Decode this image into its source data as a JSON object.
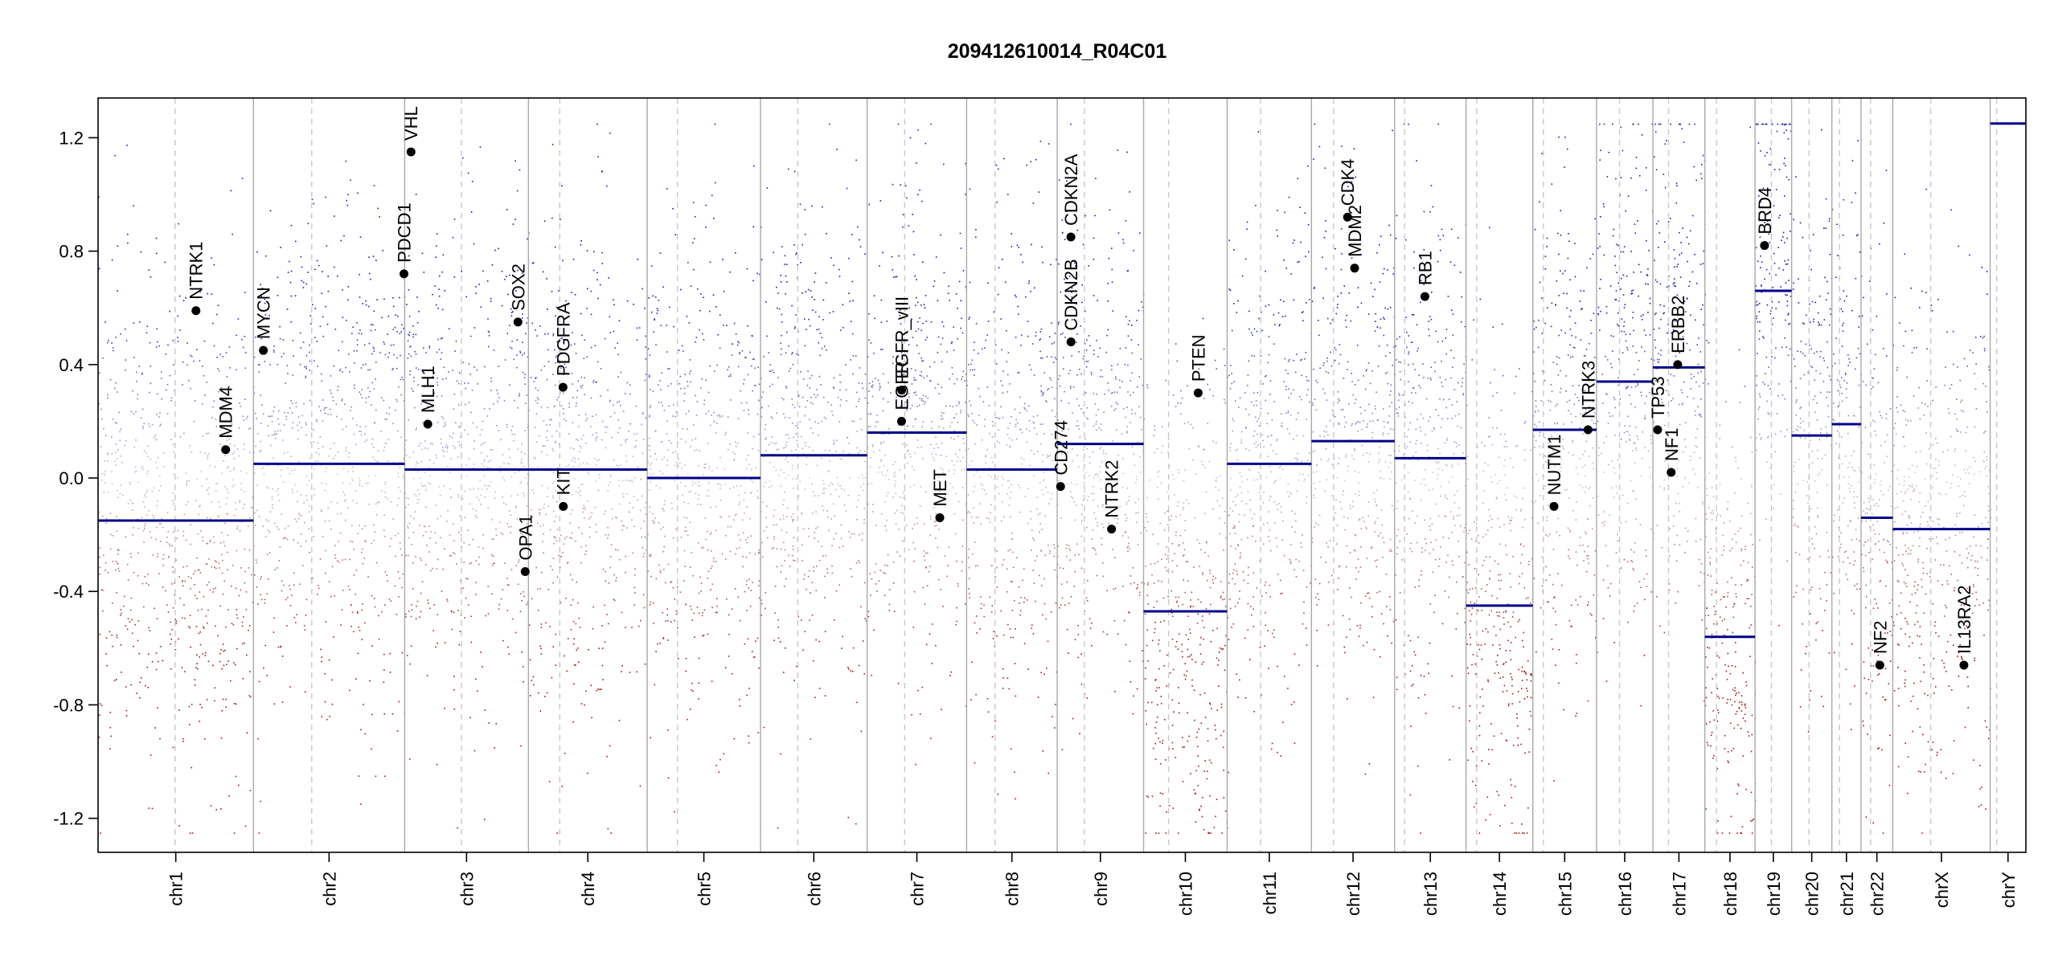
{
  "chart_data": {
    "type": "scatter",
    "title": "209412610014_R04C01",
    "xlabel": "",
    "ylabel": "",
    "ylim": [
      -1.32,
      1.34
    ],
    "yticks": [
      -1.2,
      -0.8,
      -0.4,
      0.0,
      0.4,
      0.8,
      1.2
    ],
    "ytick_labels": [
      "-1.2",
      "-0.8",
      "-0.4",
      "0.0",
      "0.4",
      "0.8",
      "1.2"
    ],
    "clip_value": 1.25,
    "grid": false,
    "colors": {
      "positive": "#1a1aa8",
      "negative": "#a01818",
      "neutral": "#b9b9c8",
      "segment": "#00008b",
      "boundary": "#a9a9a9",
      "centromere": "#c8c8c8"
    },
    "chromosomes": [
      {
        "name": "chr1",
        "start": 0.0,
        "end": 248.96,
        "centromere": 123.4
      },
      {
        "name": "chr2",
        "start": 248.96,
        "end": 491.15,
        "centromere": 342.3
      },
      {
        "name": "chr3",
        "start": 491.15,
        "end": 689.45,
        "centromere": 582.0
      },
      {
        "name": "chr4",
        "start": 689.45,
        "end": 879.67,
        "centromere": 739.6
      },
      {
        "name": "chr5",
        "start": 879.67,
        "end": 1061.21,
        "centromere": 928.1
      },
      {
        "name": "chr6",
        "start": 1061.21,
        "end": 1232.01,
        "centromere": 1121.0
      },
      {
        "name": "chr7",
        "start": 1232.01,
        "end": 1391.36,
        "centromere": 1292.2
      },
      {
        "name": "chr8",
        "start": 1391.36,
        "end": 1536.49,
        "centromere": 1436.9
      },
      {
        "name": "chr9",
        "start": 1536.49,
        "end": 1674.88,
        "centromere": 1580.0
      },
      {
        "name": "chr10",
        "start": 1674.88,
        "end": 1808.68,
        "centromere": 1714.9
      },
      {
        "name": "chr11",
        "start": 1808.68,
        "end": 1943.77,
        "centromere": 1862.3
      },
      {
        "name": "chr12",
        "start": 1943.77,
        "end": 2077.05,
        "centromere": 1979.3
      },
      {
        "name": "chr13",
        "start": 2077.05,
        "end": 2191.41,
        "centromere": 2093.0
      },
      {
        "name": "chr14",
        "start": 2191.41,
        "end": 2298.45,
        "centromere": 2208.5
      },
      {
        "name": "chr15",
        "start": 2298.45,
        "end": 2400.44,
        "centromere": 2315.3
      },
      {
        "name": "chr16",
        "start": 2400.44,
        "end": 2490.78,
        "centromere": 2437.3
      },
      {
        "name": "chr17",
        "start": 2490.78,
        "end": 2574.04,
        "centromere": 2515.8
      },
      {
        "name": "chr18",
        "start": 2574.04,
        "end": 2654.41,
        "centromere": 2592.6
      },
      {
        "name": "chr19",
        "start": 2654.41,
        "end": 2713.02,
        "centromere": 2680.6
      },
      {
        "name": "chr20",
        "start": 2713.02,
        "end": 2777.46,
        "centromere": 2741.0
      },
      {
        "name": "chr21",
        "start": 2777.46,
        "end": 2824.17,
        "centromere": 2789.5
      },
      {
        "name": "chr22",
        "start": 2824.17,
        "end": 2874.99,
        "centromere": 2839.4
      },
      {
        "name": "chrX",
        "start": 2874.99,
        "end": 3031.03,
        "centromere": 2935.8
      },
      {
        "name": "chrY",
        "start": 3031.03,
        "end": 3088.26,
        "centromere": 3041.4
      }
    ],
    "segments": [
      {
        "chr": "chr1",
        "value": -0.15
      },
      {
        "chr": "chr2",
        "value": 0.05
      },
      {
        "chr": "chr3",
        "value": 0.03
      },
      {
        "chr": "chr4",
        "value": 0.03
      },
      {
        "chr": "chr5",
        "value": 0.0
      },
      {
        "chr": "chr6",
        "value": 0.08
      },
      {
        "chr": "chr7",
        "value": 0.16
      },
      {
        "chr": "chr8",
        "value": 0.03
      },
      {
        "chr": "chr9",
        "value": 0.12
      },
      {
        "chr": "chr10",
        "value": -0.47
      },
      {
        "chr": "chr11",
        "value": 0.05
      },
      {
        "chr": "chr12",
        "value": 0.13
      },
      {
        "chr": "chr13",
        "value": 0.07
      },
      {
        "chr": "chr14",
        "value": -0.45
      },
      {
        "chr": "chr15",
        "value": 0.17
      },
      {
        "chr": "chr16",
        "value": 0.34
      },
      {
        "chr": "chr17",
        "value": 0.39
      },
      {
        "chr": "chr18",
        "value": -0.56
      },
      {
        "chr": "chr19",
        "value": 0.66
      },
      {
        "chr": "chr20",
        "value": 0.15
      },
      {
        "chr": "chr21",
        "value": 0.19
      },
      {
        "chr": "chr22",
        "value": -0.14
      },
      {
        "chr": "chrX",
        "value": -0.18
      },
      {
        "chr": "chrY",
        "value": 1.25
      }
    ],
    "genes": [
      {
        "name": "NTRK1",
        "x": 156.8,
        "y": 0.59
      },
      {
        "name": "MDM4",
        "x": 204.4,
        "y": 0.1
      },
      {
        "name": "MYCN",
        "x": 264.8,
        "y": 0.45
      },
      {
        "name": "PDCD1",
        "x": 490.0,
        "y": 0.72
      },
      {
        "name": "VHL",
        "x": 501.3,
        "y": 1.15
      },
      {
        "name": "MLH1",
        "x": 528.2,
        "y": 0.19
      },
      {
        "name": "SOX2",
        "x": 672.6,
        "y": 0.55
      },
      {
        "name": "OPA1",
        "x": 684.2,
        "y": -0.33
      },
      {
        "name": "PDGFRA",
        "x": 744.8,
        "y": 0.32
      },
      {
        "name": "KIT",
        "x": 745.3,
        "y": -0.1
      },
      {
        "name": "EGFR",
        "x": 1287.1,
        "y": 0.2
      },
      {
        "name": "EGFR_vIII",
        "x": 1287.3,
        "y": 0.31
      },
      {
        "name": "MET",
        "x": 1348.4,
        "y": -0.14
      },
      {
        "name": "CDKN2A",
        "x": 1558.4,
        "y": 0.85
      },
      {
        "name": "CDKN2B",
        "x": 1558.6,
        "y": 0.48
      },
      {
        "name": "CD274",
        "x": 1541.9,
        "y": -0.03
      },
      {
        "name": "NTRK2",
        "x": 1623.5,
        "y": -0.18
      },
      {
        "name": "PTEN",
        "x": 1762.3,
        "y": 0.3
      },
      {
        "name": "CDK4",
        "x": 2001.6,
        "y": 0.92
      },
      {
        "name": "MDM2",
        "x": 2012.9,
        "y": 0.74
      },
      {
        "name": "RB1",
        "x": 2125.5,
        "y": 0.64
      },
      {
        "name": "NUTM1",
        "x": 2332.3,
        "y": -0.1
      },
      {
        "name": "NTRK3",
        "x": 2386.9,
        "y": 0.17
      },
      {
        "name": "TP53",
        "x": 2498.3,
        "y": 0.17
      },
      {
        "name": "NF1",
        "x": 2520.0,
        "y": 0.02
      },
      {
        "name": "ERBB2",
        "x": 2530.5,
        "y": 0.4
      },
      {
        "name": "BRD4",
        "x": 2669.6,
        "y": 0.82
      },
      {
        "name": "NF2",
        "x": 2854.3,
        "y": -0.66
      },
      {
        "name": "IL13RA2",
        "x": 2989.0,
        "y": -0.66
      }
    ]
  }
}
